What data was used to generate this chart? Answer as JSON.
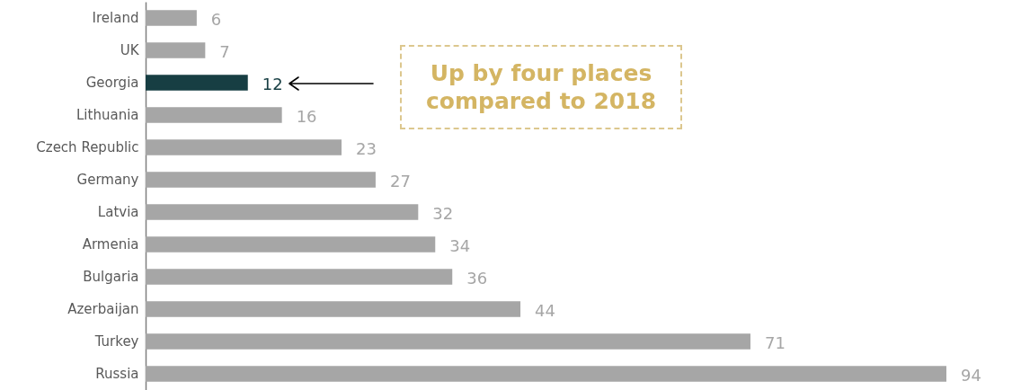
{
  "chart_data": {
    "type": "bar",
    "orientation": "horizontal",
    "data_labels": true,
    "categories": [
      "Ireland",
      "UK",
      "Georgia",
      "Lithuania",
      "Czech Republic",
      "Germany",
      "Latvia",
      "Armenia",
      "Bulgaria",
      "Azerbaijan",
      "Turkey",
      "Russia"
    ],
    "values": [
      6,
      7,
      12,
      16,
      23,
      27,
      32,
      34,
      36,
      44,
      71,
      94
    ],
    "colors": [
      "#a6a6a6",
      "#a6a6a6",
      "#173e43",
      "#a6a6a6",
      "#a6a6a6",
      "#a6a6a6",
      "#a6a6a6",
      "#a6a6a6",
      "#a6a6a6",
      "#a6a6a6",
      "#a6a6a6",
      "#a6a6a6"
    ],
    "annotations": [
      "Up by four places compared to 2018"
    ]
  }
}
